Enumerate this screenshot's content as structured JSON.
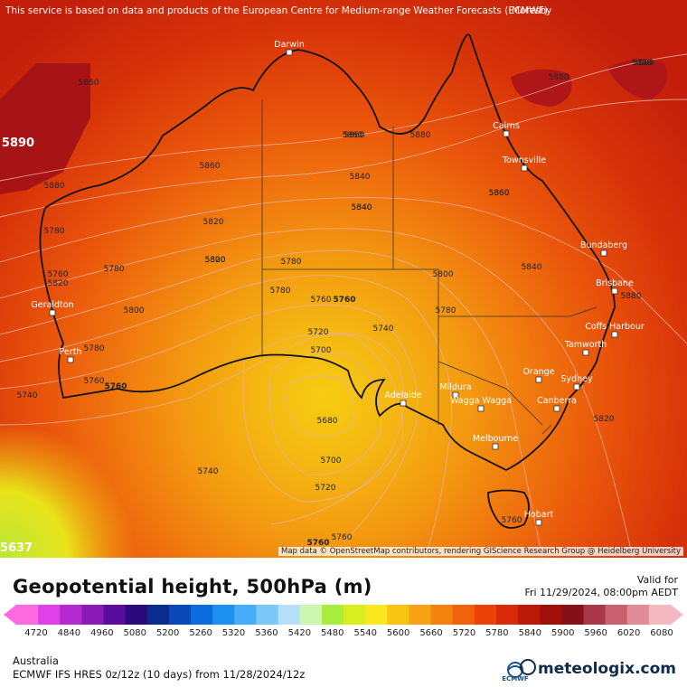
{
  "banner_text": "This service is based on data and products of the European Centre for Medium-range Weather Forecasts (ECMWF)",
  "attribution": "Map data © OpenStreetMap contributors, rendering GIScience Research Group @ Heidelberg University",
  "partial_labels": {
    "moresby": "Moresby"
  },
  "title": "Geopotential height, 500hPa (m)",
  "valid_label": "Valid for",
  "valid_time": "Fri 11/29/2024, 08:00pm AEDT",
  "region": "Australia",
  "model_info": "ECMWF IFS HRES 0z/12z (10 days) from 11/28/2024/12z",
  "brand": "meteologix.com",
  "ecmwf_logo_text": "ECMWF",
  "colorbar_ticks": [
    "4720",
    "4840",
    "4960",
    "5080",
    "5200",
    "5260",
    "5320",
    "5360",
    "5420",
    "5480",
    "5540",
    "5600",
    "5660",
    "5720",
    "5780",
    "5840",
    "5900",
    "5960",
    "6020",
    "6080"
  ],
  "colorbar_colors": [
    "#ff6ae0",
    "#e040e8",
    "#b52ad0",
    "#8a1ab8",
    "#5a0c9c",
    "#2a0a7a",
    "#0a2c8c",
    "#0a4ab8",
    "#0a6fdc",
    "#1e90f0",
    "#46aef8",
    "#7cc8fa",
    "#b4e0fc",
    "#cdf7b0",
    "#a8ee3c",
    "#d8ee20",
    "#f8e81c",
    "#f8c414",
    "#f6a212",
    "#f4820e",
    "#f2620c",
    "#ec420a",
    "#d82a08",
    "#bc1a08",
    "#a01008",
    "#861018",
    "#a83848",
    "#c86070",
    "#e08c98",
    "#f4b8c0"
  ],
  "cities": [
    {
      "name": "Darwin"
    },
    {
      "name": "Cairns"
    },
    {
      "name": "Townsville"
    },
    {
      "name": "Bundaberg"
    },
    {
      "name": "Brisbane"
    },
    {
      "name": "Coffs Harbour"
    },
    {
      "name": "Tamworth"
    },
    {
      "name": "Geraldton"
    },
    {
      "name": "Perth"
    },
    {
      "name": "Adelaide"
    },
    {
      "name": "Mildura"
    },
    {
      "name": "Wagga Wagga"
    },
    {
      "name": "Orange"
    },
    {
      "name": "Sydney"
    },
    {
      "name": "Canberra"
    },
    {
      "name": "Melbourne"
    },
    {
      "name": "Hobart"
    }
  ],
  "contour_labels": [
    "5860",
    "5880",
    "5880",
    "5860",
    "5880",
    "5860",
    "5840",
    "5860",
    "5820",
    "5840",
    "5800",
    "5780",
    "5760",
    "5780",
    "5740",
    "5720",
    "5700",
    "5680",
    "5700",
    "5720",
    "5740",
    "5760",
    "5760",
    "5780",
    "5800",
    "5820",
    "5840",
    "5860",
    "5880",
    "5820",
    "5780",
    "5760",
    "5740",
    "5760",
    "5780",
    "5800",
    "5840",
    "5860",
    "5880",
    "5880",
    "5820",
    "5780"
  ],
  "bold_labels": [
    "5890",
    "5637",
    "5760",
    "5760",
    "5760"
  ]
}
